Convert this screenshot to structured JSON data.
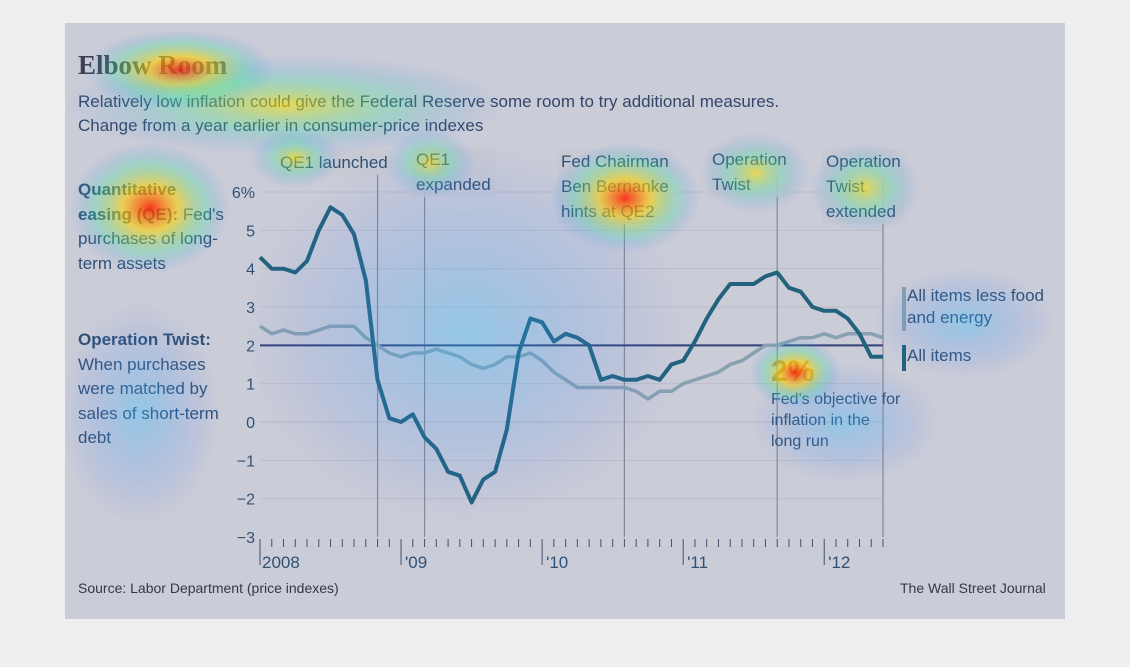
{
  "title": "Elbow Room",
  "subtitle_line1": "Relatively low inflation could give the Federal Reserve some room to try additional measures.",
  "subtitle_line2": "Change from a year earlier in consumer-price indexes",
  "sidebar": {
    "qe_term": "Quantitative easing (QE):",
    "qe_def": "Fed's purchases of long-term assets",
    "twist_term": "Operation Twist:",
    "twist_def": "When purchases were matched by sales of short-term debt"
  },
  "events": [
    {
      "label": "QE1 launched"
    },
    {
      "label": "QE1\nexpanded"
    },
    {
      "label": "Fed Chairman\nBen Bernanke\nhints at QE2"
    },
    {
      "label": "Operation\nTwist"
    },
    {
      "label": "Operation\nTwist\nextended"
    }
  ],
  "target_label": "2%",
  "target_note": "Fed's objective for inflation in the long run",
  "source": "Source: Labor Department (price indexes)",
  "credit": "The Wall Street Journal",
  "colors": {
    "all_items": "#1b5f6a",
    "core": "#8fa6a6",
    "target_line": "#2c3a66",
    "grid": "#c9c7c1",
    "event_line": "#8c8a86"
  },
  "chart_data": {
    "type": "line",
    "x_start": "2008-01",
    "x_end": "2012-06",
    "x_tick_labels": [
      "2008",
      "'09",
      "'10",
      "'11",
      "'12"
    ],
    "x_tick_dates": [
      "2008-01",
      "2009-01",
      "2010-01",
      "2011-01",
      "2012-01"
    ],
    "y_tick_labels": [
      "6%",
      "5",
      "4",
      "3",
      "2",
      "1",
      "0",
      "−1",
      "−2",
      "−3"
    ],
    "ylim": [
      -3,
      6
    ],
    "target_value": 2,
    "event_dates": [
      "2008-11",
      "2009-03",
      "2010-08",
      "2011-09",
      "2012-06"
    ],
    "series": [
      {
        "name": "All items",
        "values": [
          [
            "2008-01",
            4.3
          ],
          [
            "2008-02",
            4.0
          ],
          [
            "2008-03",
            4.0
          ],
          [
            "2008-04",
            3.9
          ],
          [
            "2008-05",
            4.2
          ],
          [
            "2008-06",
            5.0
          ],
          [
            "2008-07",
            5.6
          ],
          [
            "2008-08",
            5.4
          ],
          [
            "2008-09",
            4.9
          ],
          [
            "2008-10",
            3.7
          ],
          [
            "2008-11",
            1.1
          ],
          [
            "2008-12",
            0.1
          ],
          [
            "2009-01",
            0.0
          ],
          [
            "2009-02",
            0.2
          ],
          [
            "2009-03",
            -0.4
          ],
          [
            "2009-04",
            -0.7
          ],
          [
            "2009-05",
            -1.3
          ],
          [
            "2009-06",
            -1.4
          ],
          [
            "2009-07",
            -2.1
          ],
          [
            "2009-08",
            -1.5
          ],
          [
            "2009-09",
            -1.3
          ],
          [
            "2009-10",
            -0.2
          ],
          [
            "2009-11",
            1.8
          ],
          [
            "2009-12",
            2.7
          ],
          [
            "2010-01",
            2.6
          ],
          [
            "2010-02",
            2.1
          ],
          [
            "2010-03",
            2.3
          ],
          [
            "2010-04",
            2.2
          ],
          [
            "2010-05",
            2.0
          ],
          [
            "2010-06",
            1.1
          ],
          [
            "2010-07",
            1.2
          ],
          [
            "2010-08",
            1.1
          ],
          [
            "2010-09",
            1.1
          ],
          [
            "2010-10",
            1.2
          ],
          [
            "2010-11",
            1.1
          ],
          [
            "2010-12",
            1.5
          ],
          [
            "2011-01",
            1.6
          ],
          [
            "2011-02",
            2.1
          ],
          [
            "2011-03",
            2.7
          ],
          [
            "2011-04",
            3.2
          ],
          [
            "2011-05",
            3.6
          ],
          [
            "2011-06",
            3.6
          ],
          [
            "2011-07",
            3.6
          ],
          [
            "2011-08",
            3.8
          ],
          [
            "2011-09",
            3.9
          ],
          [
            "2011-10",
            3.5
          ],
          [
            "2011-11",
            3.4
          ],
          [
            "2011-12",
            3.0
          ],
          [
            "2012-01",
            2.9
          ],
          [
            "2012-02",
            2.9
          ],
          [
            "2012-03",
            2.7
          ],
          [
            "2012-04",
            2.3
          ],
          [
            "2012-05",
            1.7
          ],
          [
            "2012-06",
            1.7
          ]
        ]
      },
      {
        "name": "All items less food and energy",
        "values": [
          [
            "2008-01",
            2.5
          ],
          [
            "2008-02",
            2.3
          ],
          [
            "2008-03",
            2.4
          ],
          [
            "2008-04",
            2.3
          ],
          [
            "2008-05",
            2.3
          ],
          [
            "2008-06",
            2.4
          ],
          [
            "2008-07",
            2.5
          ],
          [
            "2008-08",
            2.5
          ],
          [
            "2008-09",
            2.5
          ],
          [
            "2008-10",
            2.2
          ],
          [
            "2008-11",
            2.0
          ],
          [
            "2008-12",
            1.8
          ],
          [
            "2009-01",
            1.7
          ],
          [
            "2009-02",
            1.8
          ],
          [
            "2009-03",
            1.8
          ],
          [
            "2009-04",
            1.9
          ],
          [
            "2009-05",
            1.8
          ],
          [
            "2009-06",
            1.7
          ],
          [
            "2009-07",
            1.5
          ],
          [
            "2009-08",
            1.4
          ],
          [
            "2009-09",
            1.5
          ],
          [
            "2009-10",
            1.7
          ],
          [
            "2009-11",
            1.7
          ],
          [
            "2009-12",
            1.8
          ],
          [
            "2010-01",
            1.6
          ],
          [
            "2010-02",
            1.3
          ],
          [
            "2010-03",
            1.1
          ],
          [
            "2010-04",
            0.9
          ],
          [
            "2010-05",
            0.9
          ],
          [
            "2010-06",
            0.9
          ],
          [
            "2010-07",
            0.9
          ],
          [
            "2010-08",
            0.9
          ],
          [
            "2010-09",
            0.8
          ],
          [
            "2010-10",
            0.6
          ],
          [
            "2010-11",
            0.8
          ],
          [
            "2010-12",
            0.8
          ],
          [
            "2011-01",
            1.0
          ],
          [
            "2011-02",
            1.1
          ],
          [
            "2011-03",
            1.2
          ],
          [
            "2011-04",
            1.3
          ],
          [
            "2011-05",
            1.5
          ],
          [
            "2011-06",
            1.6
          ],
          [
            "2011-07",
            1.8
          ],
          [
            "2011-08",
            2.0
          ],
          [
            "2011-09",
            2.0
          ],
          [
            "2011-10",
            2.1
          ],
          [
            "2011-11",
            2.2
          ],
          [
            "2011-12",
            2.2
          ],
          [
            "2012-01",
            2.3
          ],
          [
            "2012-02",
            2.2
          ],
          [
            "2012-03",
            2.3
          ],
          [
            "2012-04",
            2.3
          ],
          [
            "2012-05",
            2.3
          ],
          [
            "2012-06",
            2.2
          ]
        ]
      }
    ]
  }
}
